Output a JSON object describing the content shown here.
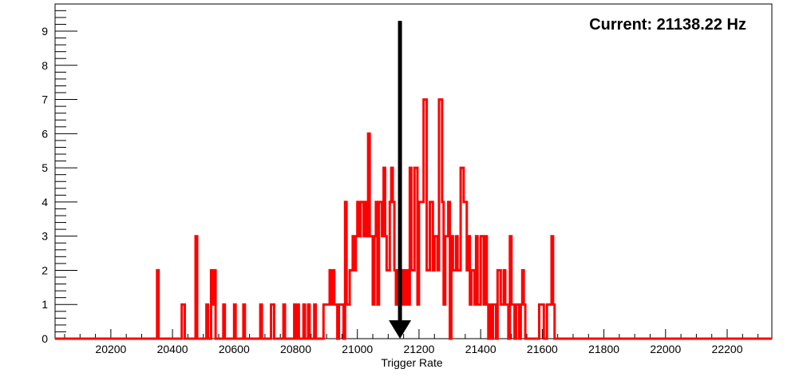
{
  "chart_data": {
    "type": "bar",
    "style": "step-histogram",
    "annotation": "Current: 21138.22 Hz",
    "current_value": 21138.22,
    "xlabel": "Trigger Rate",
    "ylabel": "",
    "xlim": [
      20019,
      22345
    ],
    "ylim": [
      0,
      9.8
    ],
    "x_ticks": [
      20200,
      20400,
      20600,
      20800,
      21000,
      21200,
      21400,
      21600,
      21800,
      22000,
      22200
    ],
    "y_ticks": [
      0,
      1,
      2,
      3,
      4,
      5,
      6,
      7,
      8,
      9
    ],
    "bin_width": 5,
    "line_color": "#ff0000",
    "arrow_color": "#000000",
    "bins": [
      [
        20350,
        2
      ],
      [
        20430,
        1
      ],
      [
        20435,
        1
      ],
      [
        20475,
        3
      ],
      [
        20510,
        1
      ],
      [
        20525,
        2
      ],
      [
        20530,
        1
      ],
      [
        20535,
        2
      ],
      [
        20565,
        1
      ],
      [
        20600,
        1
      ],
      [
        20630,
        1
      ],
      [
        20685,
        1
      ],
      [
        20720,
        1
      ],
      [
        20725,
        1
      ],
      [
        20760,
        1
      ],
      [
        20795,
        1
      ],
      [
        20805,
        1
      ],
      [
        20825,
        1
      ],
      [
        20840,
        1
      ],
      [
        20860,
        1
      ],
      [
        20890,
        1
      ],
      [
        20895,
        1
      ],
      [
        20900,
        1
      ],
      [
        20905,
        1
      ],
      [
        20910,
        2
      ],
      [
        20915,
        1
      ],
      [
        20920,
        2
      ],
      [
        20925,
        1
      ],
      [
        20930,
        1
      ],
      [
        20940,
        1
      ],
      [
        20945,
        1
      ],
      [
        20950,
        1
      ],
      [
        20960,
        4
      ],
      [
        20965,
        1
      ],
      [
        20970,
        1
      ],
      [
        20975,
        2
      ],
      [
        20980,
        2
      ],
      [
        20985,
        3
      ],
      [
        20990,
        2
      ],
      [
        20995,
        3
      ],
      [
        21000,
        4
      ],
      [
        21005,
        3
      ],
      [
        21010,
        4
      ],
      [
        21015,
        4
      ],
      [
        21020,
        3
      ],
      [
        21025,
        4
      ],
      [
        21030,
        3
      ],
      [
        21035,
        6
      ],
      [
        21040,
        3
      ],
      [
        21045,
        3
      ],
      [
        21050,
        1
      ],
      [
        21055,
        3
      ],
      [
        21060,
        4
      ],
      [
        21065,
        1
      ],
      [
        21070,
        4
      ],
      [
        21075,
        4
      ],
      [
        21080,
        3
      ],
      [
        21085,
        5
      ],
      [
        21090,
        3
      ],
      [
        21095,
        2
      ],
      [
        21100,
        2
      ],
      [
        21105,
        4
      ],
      [
        21110,
        5
      ],
      [
        21115,
        4
      ],
      [
        21120,
        2
      ],
      [
        21125,
        1
      ],
      [
        21130,
        2
      ],
      [
        21135,
        1
      ],
      [
        21140,
        2
      ],
      [
        21145,
        1
      ],
      [
        21150,
        2
      ],
      [
        21155,
        1
      ],
      [
        21160,
        2
      ],
      [
        21165,
        1
      ],
      [
        21170,
        5
      ],
      [
        21175,
        2
      ],
      [
        21180,
        2
      ],
      [
        21185,
        5
      ],
      [
        21190,
        5
      ],
      [
        21195,
        1
      ],
      [
        21200,
        4
      ],
      [
        21205,
        4
      ],
      [
        21210,
        4
      ],
      [
        21215,
        7
      ],
      [
        21220,
        7
      ],
      [
        21225,
        2
      ],
      [
        21230,
        2
      ],
      [
        21235,
        4
      ],
      [
        21240,
        4
      ],
      [
        21245,
        2
      ],
      [
        21250,
        3
      ],
      [
        21255,
        3
      ],
      [
        21260,
        2
      ],
      [
        21265,
        7
      ],
      [
        21270,
        7
      ],
      [
        21275,
        4
      ],
      [
        21280,
        1
      ],
      [
        21285,
        3
      ],
      [
        21290,
        3
      ],
      [
        21295,
        4
      ],
      [
        21305,
        3
      ],
      [
        21310,
        2
      ],
      [
        21315,
        2
      ],
      [
        21320,
        3
      ],
      [
        21325,
        2
      ],
      [
        21330,
        2
      ],
      [
        21335,
        5
      ],
      [
        21340,
        5
      ],
      [
        21345,
        4
      ],
      [
        21350,
        4
      ],
      [
        21355,
        2
      ],
      [
        21360,
        3
      ],
      [
        21365,
        1
      ],
      [
        21370,
        2
      ],
      [
        21375,
        2
      ],
      [
        21380,
        1
      ],
      [
        21385,
        3
      ],
      [
        21390,
        1
      ],
      [
        21395,
        1
      ],
      [
        21400,
        3
      ],
      [
        21405,
        3
      ],
      [
        21410,
        1
      ],
      [
        21415,
        3
      ],
      [
        21420,
        1
      ],
      [
        21430,
        1
      ],
      [
        21440,
        1
      ],
      [
        21445,
        1
      ],
      [
        21455,
        2
      ],
      [
        21460,
        2
      ],
      [
        21465,
        1
      ],
      [
        21470,
        1
      ],
      [
        21475,
        2
      ],
      [
        21480,
        1
      ],
      [
        21485,
        1
      ],
      [
        21495,
        3
      ],
      [
        21500,
        1
      ],
      [
        21505,
        1
      ],
      [
        21515,
        1
      ],
      [
        21520,
        1
      ],
      [
        21530,
        1
      ],
      [
        21535,
        2
      ],
      [
        21540,
        1
      ],
      [
        21590,
        1
      ],
      [
        21595,
        1
      ],
      [
        21600,
        1
      ],
      [
        21615,
        1
      ],
      [
        21620,
        1
      ],
      [
        21625,
        1
      ],
      [
        21630,
        3
      ],
      [
        21635,
        1
      ]
    ]
  }
}
